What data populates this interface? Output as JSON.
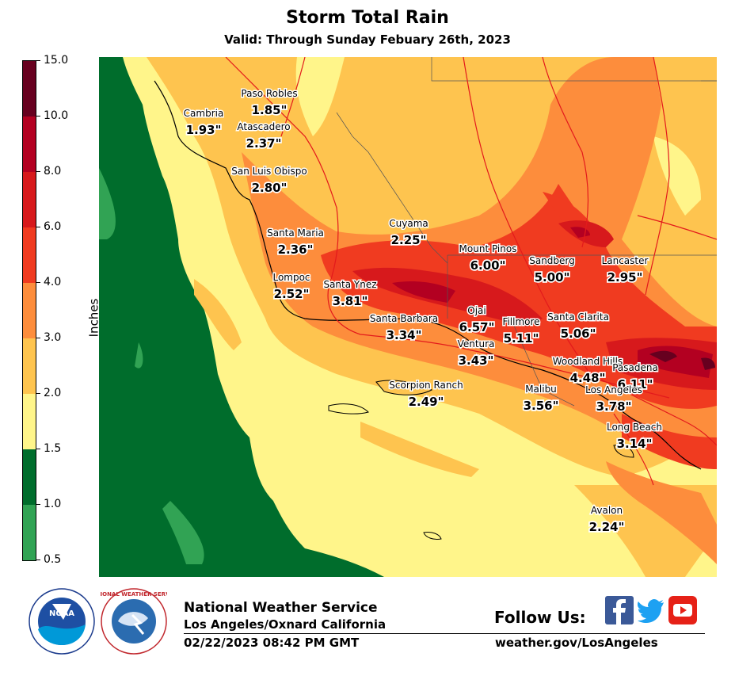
{
  "title": "Storm Total Rain",
  "subtitle": "Valid: Through Sunday Febuary 26th, 2023",
  "colorbar": {
    "label": "Inches",
    "bins": [
      {
        "min": 0.5,
        "max": 1.0,
        "color": "#31a354"
      },
      {
        "min": 1.0,
        "max": 1.5,
        "color": "#006d2c"
      },
      {
        "min": 1.5,
        "max": 2.0,
        "color": "#fff58a"
      },
      {
        "min": 2.0,
        "max": 3.0,
        "color": "#fec44f"
      },
      {
        "min": 3.0,
        "max": 4.0,
        "color": "#fd8d3c"
      },
      {
        "min": 4.0,
        "max": 6.0,
        "color": "#f03b20"
      },
      {
        "min": 6.0,
        "max": 8.0,
        "color": "#d7191c"
      },
      {
        "min": 8.0,
        "max": 10.0,
        "color": "#b30021"
      },
      {
        "min": 10.0,
        "max": 15.0,
        "color": "#67001f"
      }
    ],
    "ticks": [
      "0.5",
      "1.0",
      "1.5",
      "2.0",
      "3.0",
      "4.0",
      "6.0",
      "8.0",
      "10.0",
      "15.0"
    ]
  },
  "locations": [
    {
      "name": "Paso Robles",
      "amount": "1.85\""
    },
    {
      "name": "Cambria",
      "amount": "1.93\""
    },
    {
      "name": "Atascadero",
      "amount": "2.37\""
    },
    {
      "name": "San Luis Obispo",
      "amount": "2.80\""
    },
    {
      "name": "Cuyama",
      "amount": "2.25\""
    },
    {
      "name": "Santa Maria",
      "amount": "2.36\""
    },
    {
      "name": "Mount Pinos",
      "amount": "6.00\""
    },
    {
      "name": "Sandberg",
      "amount": "5.00\""
    },
    {
      "name": "Lancaster",
      "amount": "2.95\""
    },
    {
      "name": "Lompoc",
      "amount": "2.52\""
    },
    {
      "name": "Santa Ynez",
      "amount": "3.81\""
    },
    {
      "name": "Ojai",
      "amount": "6.57\""
    },
    {
      "name": "Santa Barbara",
      "amount": "3.34\""
    },
    {
      "name": "Fillmore",
      "amount": "5.11\""
    },
    {
      "name": "Santa Clarita",
      "amount": "5.06\""
    },
    {
      "name": "Ventura",
      "amount": "3.43\""
    },
    {
      "name": "Woodland Hills",
      "amount": "4.48\""
    },
    {
      "name": "Pasadena",
      "amount": "6.11\""
    },
    {
      "name": "Scorpion Ranch",
      "amount": "2.49\""
    },
    {
      "name": "Malibu",
      "amount": "3.56\""
    },
    {
      "name": "Los Angeles",
      "amount": "3.78\""
    },
    {
      "name": "Long Beach",
      "amount": "3.14\""
    },
    {
      "name": "Avalon",
      "amount": "2.24\""
    }
  ],
  "footer": {
    "org": "National Weather Service",
    "office": "Los Angeles/Oxnard California",
    "timestamp": "02/22/2023 08:42 PM GMT",
    "follow": "Follow Us:",
    "url": "weather.gov/LosAngeles",
    "noaa_logo_text": "NOAA",
    "nws_ring_text": "NATIONAL WEATHER SERVICE"
  },
  "social": [
    {
      "name": "facebook-icon",
      "color": "#3b5998"
    },
    {
      "name": "twitter-icon",
      "color": "#1da1f2"
    },
    {
      "name": "youtube-icon",
      "color": "#e62117"
    }
  ]
}
